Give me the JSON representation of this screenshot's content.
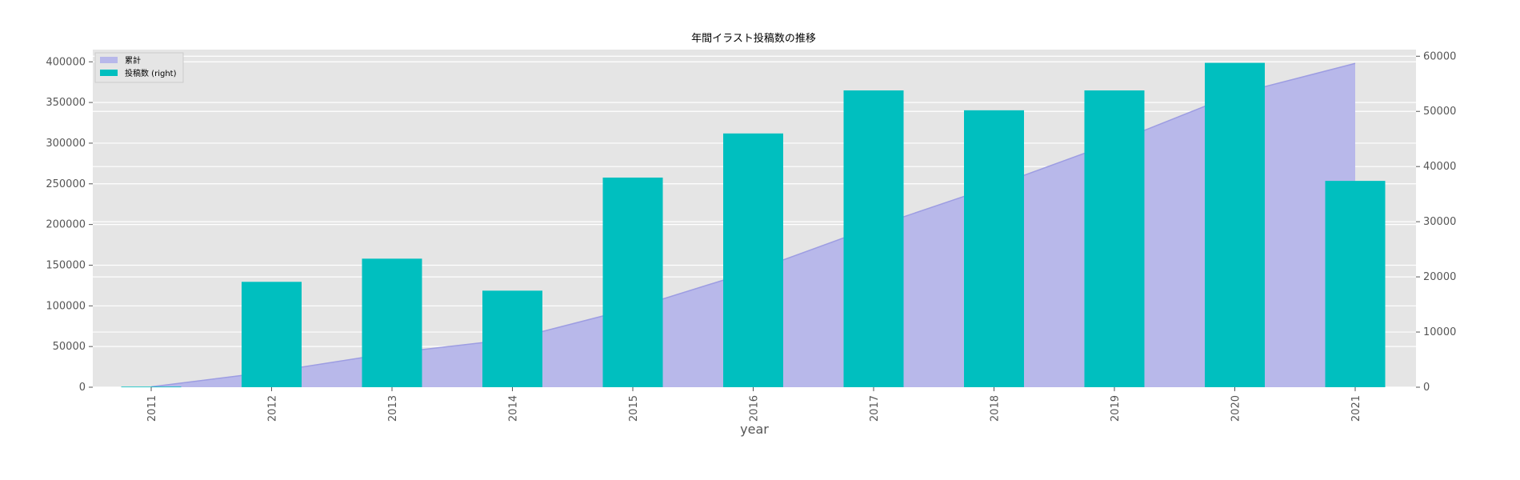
{
  "chart_data": {
    "type": "bar",
    "title": "年間イラスト投稿数の推移",
    "xlabel": "year",
    "categories": [
      "2011",
      "2012",
      "2013",
      "2014",
      "2015",
      "2016",
      "2017",
      "2018",
      "2019",
      "2020",
      "2021"
    ],
    "series": [
      {
        "name": "累計",
        "type": "area",
        "axis": "left",
        "color": "#b8b8ea",
        "values": [
          500,
          19000,
          42000,
          59000,
          97000,
          143000,
          197000,
          247000,
          301000,
          360000,
          398000
        ]
      },
      {
        "name": "投稿数 (right)",
        "type": "bar",
        "axis": "right",
        "color": "#00bfbf",
        "values": [
          100,
          19100,
          23300,
          17500,
          38000,
          46000,
          53800,
          50200,
          53800,
          58800,
          37400
        ]
      }
    ],
    "y_left": {
      "ylim": [
        0,
        415000
      ],
      "ticks": [
        0,
        50000,
        100000,
        150000,
        200000,
        250000,
        300000,
        350000,
        400000
      ]
    },
    "y_right": {
      "ylim": [
        0,
        61200
      ],
      "ticks": [
        0,
        10000,
        20000,
        30000,
        40000,
        50000,
        60000
      ]
    },
    "grid": true,
    "legend": "top-left",
    "background": "#e5e5e5"
  }
}
